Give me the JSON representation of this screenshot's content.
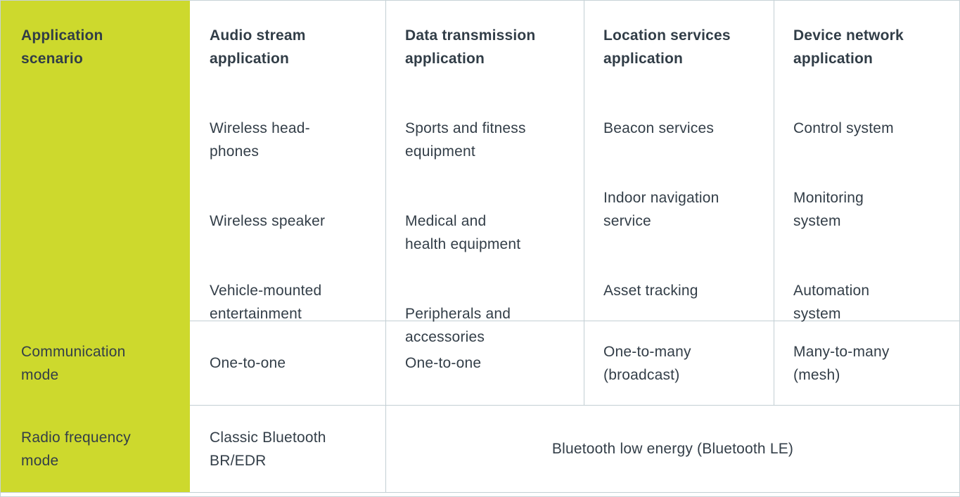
{
  "table_title": "Bluetooth application scenario comparison table",
  "colors": {
    "accent_green": "#cdd92d",
    "text_dark": "#333e48",
    "grid_border": "#c3cfd4",
    "cell_background": "#ffffff"
  },
  "row_labels": {
    "application_scenario": "Application\nscenario",
    "communication_mode": "Communication\nmode",
    "radio_frequency_mode": "Radio frequency\nmode"
  },
  "columns": [
    {
      "header": "Audio stream\napplication",
      "scenarios": [
        "Wireless head-\nphones",
        "Wireless speaker",
        "Vehicle-mounted\nentertainment"
      ],
      "communication_mode": "One-to-one",
      "radio_frequency_mode": "Classic Bluetooth\nBR/EDR"
    },
    {
      "header": "Data transmission\napplication",
      "scenarios": [
        "Sports and fitness\nequipment",
        "Medical and\nhealth equipment",
        "Peripherals and\naccessories"
      ],
      "communication_mode": "One-to-one"
    },
    {
      "header": "Location services\napplication",
      "scenarios": [
        "Beacon services",
        "Indoor navigation\nservice",
        "Asset tracking"
      ],
      "communication_mode": "One-to-many\n(broadcast)"
    },
    {
      "header": "Device network\napplication",
      "scenarios": [
        "Control system",
        "Monitoring\nsystem",
        "Automation\nsystem"
      ],
      "communication_mode": "Many-to-many\n(mesh)"
    }
  ],
  "shared_radio_frequency_mode": "Bluetooth low energy (Bluetooth LE)"
}
